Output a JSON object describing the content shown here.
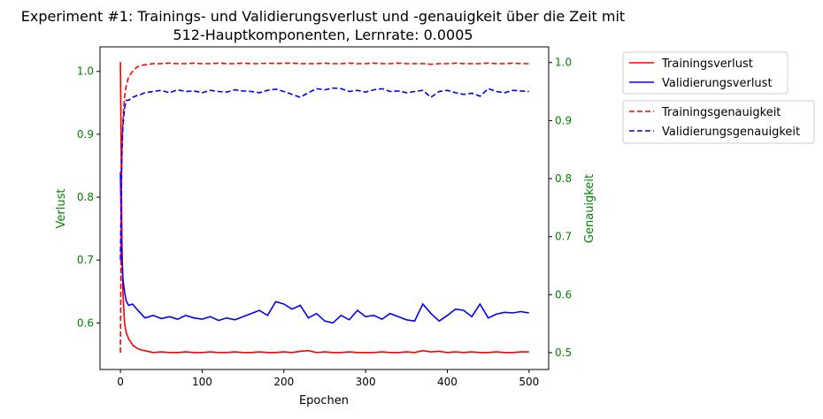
{
  "chart_data": {
    "type": "line",
    "title": "Experiment #1: Trainings- und Validierungsverlust und -genauigkeit über die Zeit mit\n512-Hauptkomponenten, Lernrate: 0.0005",
    "title_lines": [
      "Experiment #1: Trainings- und Validierungsverlust und -genauigkeit über die Zeit mit",
      "512-Hauptkomponenten, Lernrate: 0.0005"
    ],
    "xlabel": "Epochen",
    "ylabel_left": "Verlust",
    "ylabel_right": "Genauigkeit",
    "axis_label_color": "#008000",
    "xlim": [
      -25,
      524
    ],
    "ylim_left": [
      0.526,
      1.039
    ],
    "ylim_right": [
      0.471,
      1.027
    ],
    "x_ticks": [
      "0",
      "100",
      "200",
      "300",
      "400",
      "500"
    ],
    "y_ticks_left": [
      "0.6",
      "0.7",
      "0.8",
      "0.9",
      "1.0"
    ],
    "y_ticks_right": [
      "0.5",
      "0.6",
      "0.7",
      "0.8",
      "0.9",
      "1.0"
    ],
    "grid": false,
    "legend_placement": "outside-right",
    "x": [
      0,
      1,
      2,
      3,
      5,
      7,
      10,
      15,
      20,
      25,
      30,
      40,
      50,
      60,
      70,
      80,
      90,
      100,
      110,
      120,
      130,
      140,
      150,
      160,
      170,
      180,
      190,
      200,
      210,
      220,
      230,
      240,
      250,
      260,
      270,
      280,
      290,
      300,
      310,
      320,
      330,
      340,
      350,
      360,
      370,
      380,
      390,
      400,
      410,
      420,
      430,
      440,
      450,
      460,
      470,
      480,
      490,
      500
    ],
    "series": [
      {
        "name": "Trainingsverlust",
        "axis": "left",
        "color": "#ff0000",
        "style": "solid",
        "values": [
          1.015,
          0.85,
          0.72,
          0.65,
          0.6,
          0.585,
          0.575,
          0.565,
          0.56,
          0.557,
          0.556,
          0.553,
          0.554,
          0.553,
          0.553,
          0.554,
          0.553,
          0.553,
          0.554,
          0.553,
          0.553,
          0.554,
          0.553,
          0.553,
          0.554,
          0.553,
          0.553,
          0.554,
          0.553,
          0.555,
          0.556,
          0.553,
          0.554,
          0.553,
          0.553,
          0.554,
          0.553,
          0.553,
          0.553,
          0.554,
          0.553,
          0.553,
          0.554,
          0.553,
          0.556,
          0.554,
          0.555,
          0.553,
          0.554,
          0.553,
          0.554,
          0.553,
          0.553,
          0.554,
          0.553,
          0.553,
          0.554,
          0.554
        ]
      },
      {
        "name": "Validierungsverlust",
        "axis": "left",
        "color": "#0000ff",
        "style": "solid",
        "values": [
          0.84,
          0.75,
          0.7,
          0.67,
          0.65,
          0.635,
          0.628,
          0.63,
          0.622,
          0.615,
          0.608,
          0.612,
          0.607,
          0.61,
          0.606,
          0.612,
          0.608,
          0.606,
          0.61,
          0.604,
          0.608,
          0.605,
          0.61,
          0.615,
          0.62,
          0.612,
          0.634,
          0.63,
          0.622,
          0.628,
          0.608,
          0.615,
          0.603,
          0.6,
          0.612,
          0.605,
          0.62,
          0.61,
          0.612,
          0.606,
          0.615,
          0.61,
          0.605,
          0.603,
          0.63,
          0.615,
          0.603,
          0.612,
          0.622,
          0.62,
          0.61,
          0.63,
          0.608,
          0.614,
          0.617,
          0.616,
          0.618,
          0.616
        ]
      },
      {
        "name": "Trainingsgenauigkeit",
        "axis": "right",
        "color": "#ff0000",
        "style": "dashed",
        "values": [
          0.5,
          0.75,
          0.86,
          0.9,
          0.94,
          0.96,
          0.975,
          0.985,
          0.992,
          0.995,
          0.996,
          0.998,
          0.998,
          0.999,
          0.998,
          0.998,
          0.999,
          0.998,
          0.998,
          0.999,
          0.998,
          0.998,
          0.999,
          0.998,
          0.998,
          0.999,
          0.998,
          0.999,
          0.999,
          0.998,
          0.998,
          0.998,
          0.999,
          0.998,
          0.998,
          0.999,
          0.998,
          0.998,
          0.999,
          0.998,
          0.998,
          0.999,
          0.998,
          0.998,
          0.998,
          0.997,
          0.998,
          0.998,
          0.999,
          0.998,
          0.998,
          0.998,
          0.999,
          0.998,
          0.998,
          0.999,
          0.998,
          0.998
        ]
      },
      {
        "name": "Validierungsgenauigkeit",
        "axis": "right",
        "color": "#0000ff",
        "style": "dashed",
        "values": [
          0.66,
          0.78,
          0.85,
          0.89,
          0.92,
          0.935,
          0.935,
          0.94,
          0.943,
          0.945,
          0.948,
          0.95,
          0.952,
          0.948,
          0.953,
          0.95,
          0.951,
          0.948,
          0.952,
          0.95,
          0.949,
          0.953,
          0.951,
          0.95,
          0.948,
          0.952,
          0.954,
          0.95,
          0.945,
          0.94,
          0.948,
          0.955,
          0.953,
          0.956,
          0.955,
          0.95,
          0.952,
          0.949,
          0.953,
          0.955,
          0.95,
          0.951,
          0.948,
          0.95,
          0.952,
          0.94,
          0.95,
          0.952,
          0.948,
          0.945,
          0.947,
          0.942,
          0.955,
          0.95,
          0.948,
          0.952,
          0.951,
          0.95
        ]
      }
    ]
  }
}
